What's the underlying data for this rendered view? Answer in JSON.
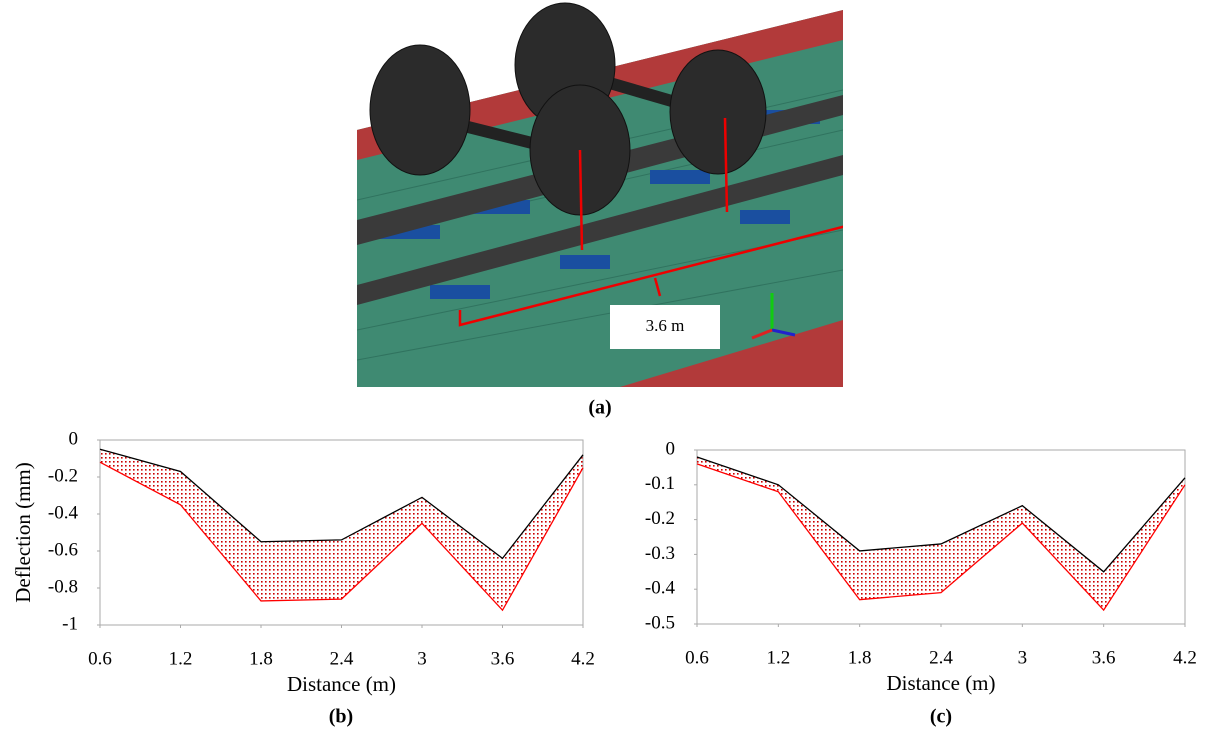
{
  "figure_a": {
    "dimension_label": "3.6 m",
    "caption": "(a)"
  },
  "chart_data": [
    {
      "type": "area",
      "x_label": "Distance (m)",
      "y_label": "Deflection (mm)",
      "caption": "(b)",
      "x": [
        0.6,
        1.2,
        1.8,
        2.4,
        3,
        3.6,
        4.2
      ],
      "series": [
        {
          "color": "#000000",
          "values": [
            -0.05,
            -0.17,
            -0.55,
            -0.54,
            -0.31,
            -0.64,
            -0.08
          ]
        },
        {
          "color": "#ff0000",
          "values": [
            -0.12,
            -0.35,
            -0.87,
            -0.86,
            -0.45,
            -0.92,
            -0.15
          ]
        }
      ],
      "fill_color": "#cc0000",
      "xlim": [
        0.6,
        4.2
      ],
      "xticks": [
        0.6,
        1.2,
        1.8,
        2.4,
        3,
        3.6,
        4.2
      ],
      "ylim": [
        -1,
        0
      ],
      "yticks": [
        0,
        -0.2,
        -0.4,
        -0.6,
        -0.8,
        -1
      ]
    },
    {
      "type": "area",
      "x_label": "Distance (m)",
      "caption": "(c)",
      "x": [
        0.6,
        1.2,
        1.8,
        2.4,
        3,
        3.6,
        4.2
      ],
      "series": [
        {
          "color": "#000000",
          "values": [
            -0.02,
            -0.1,
            -0.29,
            -0.27,
            -0.16,
            -0.35,
            -0.08
          ]
        },
        {
          "color": "#ff0000",
          "values": [
            -0.04,
            -0.12,
            -0.43,
            -0.41,
            -0.21,
            -0.46,
            -0.1
          ]
        }
      ],
      "fill_color": "#cc0000",
      "xlim": [
        0.6,
        4.2
      ],
      "xticks": [
        0.6,
        1.2,
        1.8,
        2.4,
        3,
        3.6,
        4.2
      ],
      "ylim": [
        -0.5,
        0
      ],
      "yticks": [
        0,
        -0.1,
        -0.2,
        -0.3,
        -0.4,
        -0.5
      ]
    }
  ]
}
